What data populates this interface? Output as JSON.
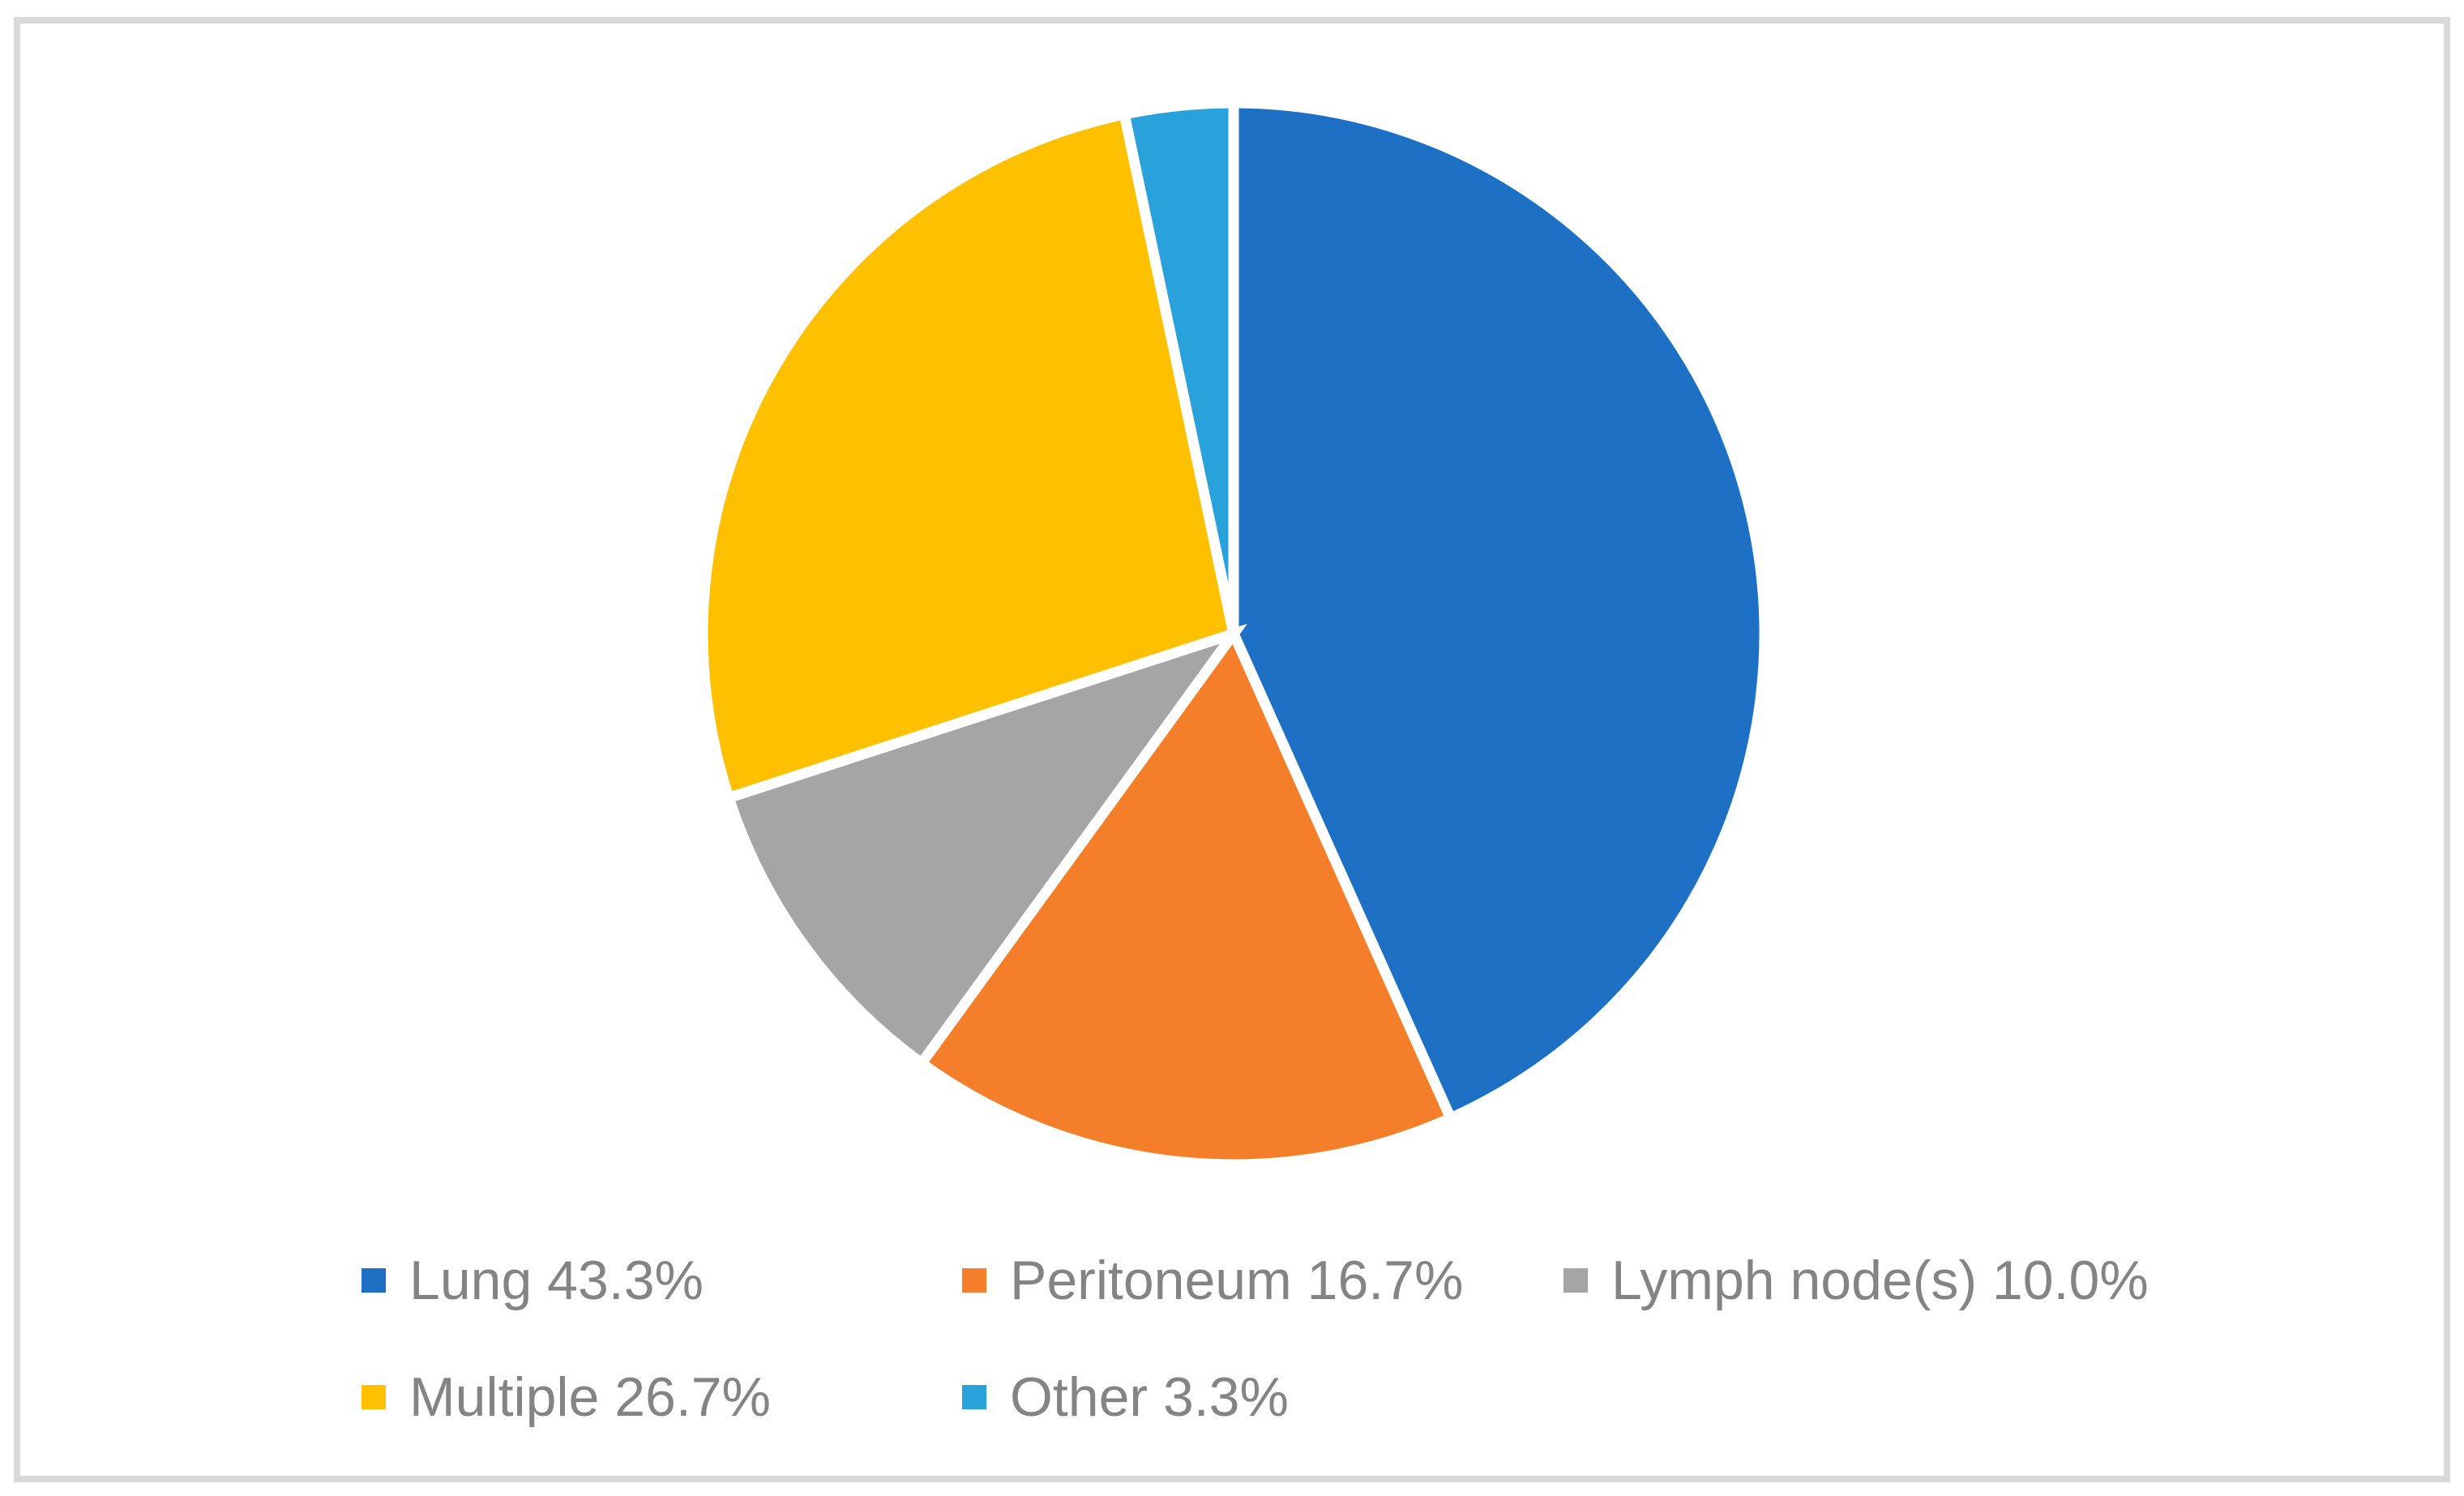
{
  "chart_data": {
    "type": "pie",
    "title": "",
    "legend_position": "bottom",
    "start_angle_deg": 0,
    "direction": "clockwise",
    "categories": [
      "Lung",
      "Peritoneum",
      "Lymph node(s)",
      "Multiple",
      "Other"
    ],
    "values": [
      43.3,
      16.7,
      10.0,
      26.7,
      3.3
    ],
    "slices": [
      {
        "label": "Lung",
        "pct": 43.3,
        "color": "#1D70C3",
        "legend_label": "Lung 43.3%"
      },
      {
        "label": "Peritoneum",
        "pct": 16.7,
        "color": "#F57E2A",
        "legend_label": "Peritoneum 16.7%"
      },
      {
        "label": "Lymph node(s)",
        "pct": 10.0,
        "color": "#A5A5A5",
        "legend_label": "Lymph node(s) 10.0%"
      },
      {
        "label": "Multiple",
        "pct": 26.7,
        "color": "#FFC000",
        "legend_label": "Multiple 26.7%"
      },
      {
        "label": "Other",
        "pct": 3.3,
        "color": "#29A1DB",
        "legend_label": "Other 3.3%"
      }
    ]
  },
  "styles": {
    "figure_border_color": "#D9D9D9",
    "slice_gap_color": "#FFFFFF",
    "legend_text_color": "#848484",
    "background_color": "#FFFFFF"
  }
}
